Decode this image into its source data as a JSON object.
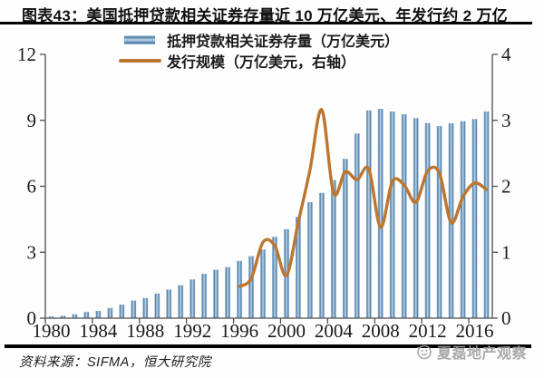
{
  "title": "图表43：美国抵押贷款相关证券存量近 10 万亿美元、年发行约 2 万亿",
  "legend": {
    "items": [
      {
        "label": "抵押贷款相关证券存量（万亿美元）",
        "key": "bar"
      },
      {
        "label": "发行规模（万亿美元，右轴）",
        "key": "line"
      }
    ]
  },
  "source_note": "资料来源：SIFMA，恒大研究院",
  "watermark": "夏磊地产观察",
  "colors": {
    "bar_edge": "#4a79a4",
    "bar_center": "#c0d7e8",
    "bar_rim": "#d7e6f2",
    "line": "#bd7630",
    "axis": "#4d4d4d",
    "tick_text": "#1a1a1a",
    "rule": "#000000",
    "watermark": "#a0a0a0"
  },
  "chart_data": {
    "type": "bar",
    "combo": "bar+line",
    "title": "图表43：美国抵押贷款相关证券存量近 10 万亿美元、年发行约 2 万亿",
    "x_years": [
      1980,
      1981,
      1982,
      1983,
      1984,
      1985,
      1986,
      1987,
      1988,
      1989,
      1990,
      1991,
      1992,
      1993,
      1994,
      1995,
      1996,
      1997,
      1998,
      1999,
      2000,
      2001,
      2002,
      2003,
      2004,
      2005,
      2006,
      2007,
      2008,
      2009,
      2010,
      2011,
      2012,
      2013,
      2014,
      2015,
      2016,
      2017
    ],
    "series": [
      {
        "name": "抵押贷款相关证券存量（万亿美元）",
        "type": "bar",
        "axis": "left",
        "values": [
          0.08,
          0.11,
          0.18,
          0.28,
          0.33,
          0.46,
          0.62,
          0.8,
          0.92,
          1.12,
          1.3,
          1.5,
          1.76,
          2.02,
          2.2,
          2.32,
          2.6,
          2.82,
          3.12,
          3.7,
          4.05,
          4.6,
          5.28,
          5.7,
          6.28,
          7.25,
          8.4,
          9.45,
          9.52,
          9.4,
          9.28,
          9.1,
          8.88,
          8.74,
          8.86,
          8.96,
          9.06,
          9.4
        ]
      },
      {
        "name": "发行规模（万亿美元，右轴）",
        "type": "line",
        "axis": "right",
        "start_year": 1996,
        "values": [
          0.48,
          0.6,
          1.15,
          1.1,
          0.65,
          1.45,
          2.25,
          3.16,
          1.9,
          2.22,
          2.1,
          2.26,
          1.38,
          2.07,
          2.02,
          1.76,
          2.23,
          2.2,
          1.45,
          1.84,
          2.05,
          1.95
        ]
      }
    ],
    "left_axis": {
      "range": [
        0,
        12
      ],
      "ticks": [
        0,
        3,
        6,
        9,
        12
      ]
    },
    "right_axis": {
      "range": [
        0,
        4
      ],
      "ticks": [
        0,
        1,
        2,
        3,
        4
      ]
    },
    "x_axis": {
      "tick_label_years": [
        1980,
        1984,
        1988,
        1992,
        1996,
        2000,
        2004,
        2008,
        2012,
        2016
      ]
    },
    "grid": false,
    "legend_position": "top-center"
  }
}
